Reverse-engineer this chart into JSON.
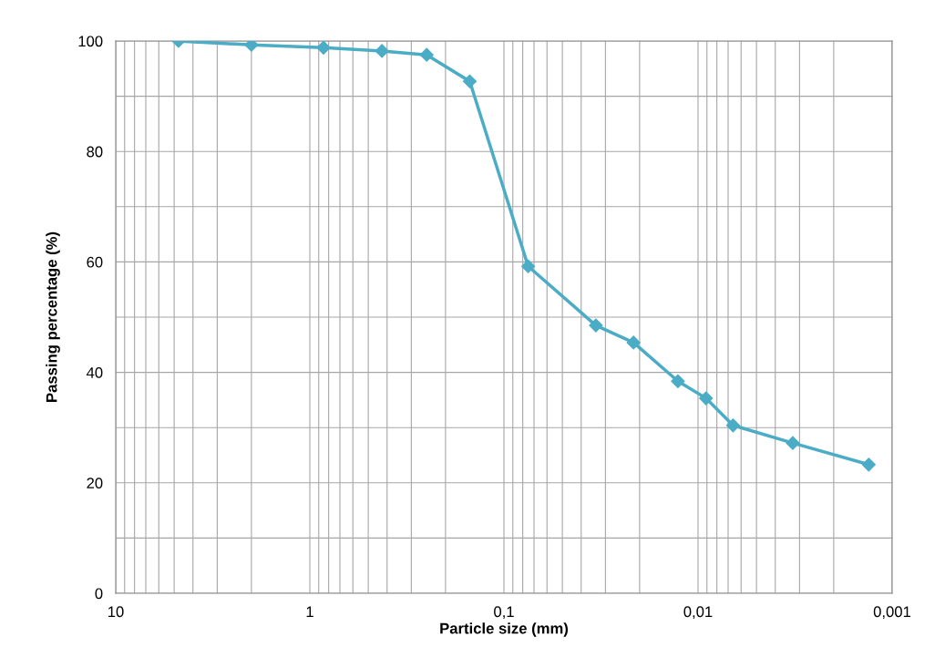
{
  "chart_data": {
    "type": "line",
    "xlabel": "Particle size (mm)",
    "ylabel": "Passing percentage (%)",
    "x": [
      4.75,
      2.0,
      0.85,
      0.425,
      0.25,
      0.15,
      0.075,
      0.0336,
      0.0215,
      0.0127,
      0.0091,
      0.0066,
      0.00325,
      0.00132
    ],
    "series": [
      {
        "color": "#4bacc6",
        "values": [
          100,
          99.3,
          98.8,
          98.2,
          97.5,
          92.7,
          59.2,
          48.5,
          45.4,
          38.4,
          35.3,
          30.4,
          27.2,
          23.3
        ]
      }
    ],
    "log": "x",
    "xlim": [
      10,
      0.001
    ],
    "ylim": [
      0,
      100
    ],
    "xticks": [
      {
        "value": 10,
        "label": "10"
      },
      {
        "value": 9,
        "label": null
      },
      {
        "value": 8,
        "label": null
      },
      {
        "value": 7,
        "label": null
      },
      {
        "value": 6,
        "label": null
      },
      {
        "value": 5,
        "label": null
      },
      {
        "value": 4,
        "label": null
      },
      {
        "value": 3,
        "label": null
      },
      {
        "value": 2,
        "label": null
      },
      {
        "value": 1,
        "label": "1"
      },
      {
        "value": 0.9,
        "label": null
      },
      {
        "value": 0.8,
        "label": null
      },
      {
        "value": 0.7,
        "label": null
      },
      {
        "value": 0.6,
        "label": null
      },
      {
        "value": 0.5,
        "label": null
      },
      {
        "value": 0.4,
        "label": null
      },
      {
        "value": 0.3,
        "label": null
      },
      {
        "value": 0.2,
        "label": null
      },
      {
        "value": 0.1,
        "label": "0,1"
      },
      {
        "value": 0.09,
        "label": null
      },
      {
        "value": 0.08,
        "label": null
      },
      {
        "value": 0.07,
        "label": null
      },
      {
        "value": 0.06,
        "label": null
      },
      {
        "value": 0.05,
        "label": null
      },
      {
        "value": 0.04,
        "label": null
      },
      {
        "value": 0.03,
        "label": null
      },
      {
        "value": 0.02,
        "label": null
      },
      {
        "value": 0.01,
        "label": "0,01"
      },
      {
        "value": 0.009,
        "label": null
      },
      {
        "value": 0.008,
        "label": null
      },
      {
        "value": 0.007,
        "label": null
      },
      {
        "value": 0.006,
        "label": null
      },
      {
        "value": 0.005,
        "label": null
      },
      {
        "value": 0.004,
        "label": null
      },
      {
        "value": 0.003,
        "label": null
      },
      {
        "value": 0.002,
        "label": null
      },
      {
        "value": 0.001,
        "label": "0,001"
      }
    ],
    "yticks": [
      0,
      {
        "value": 10,
        "label": null
      },
      20,
      {
        "value": 30,
        "label": null
      },
      40,
      {
        "value": 50,
        "label": null
      },
      60,
      {
        "value": 70,
        "label": null
      },
      80,
      {
        "value": 90,
        "label": null
      },
      100
    ],
    "grid": true,
    "marker": "diamond",
    "line_style": "solid"
  }
}
